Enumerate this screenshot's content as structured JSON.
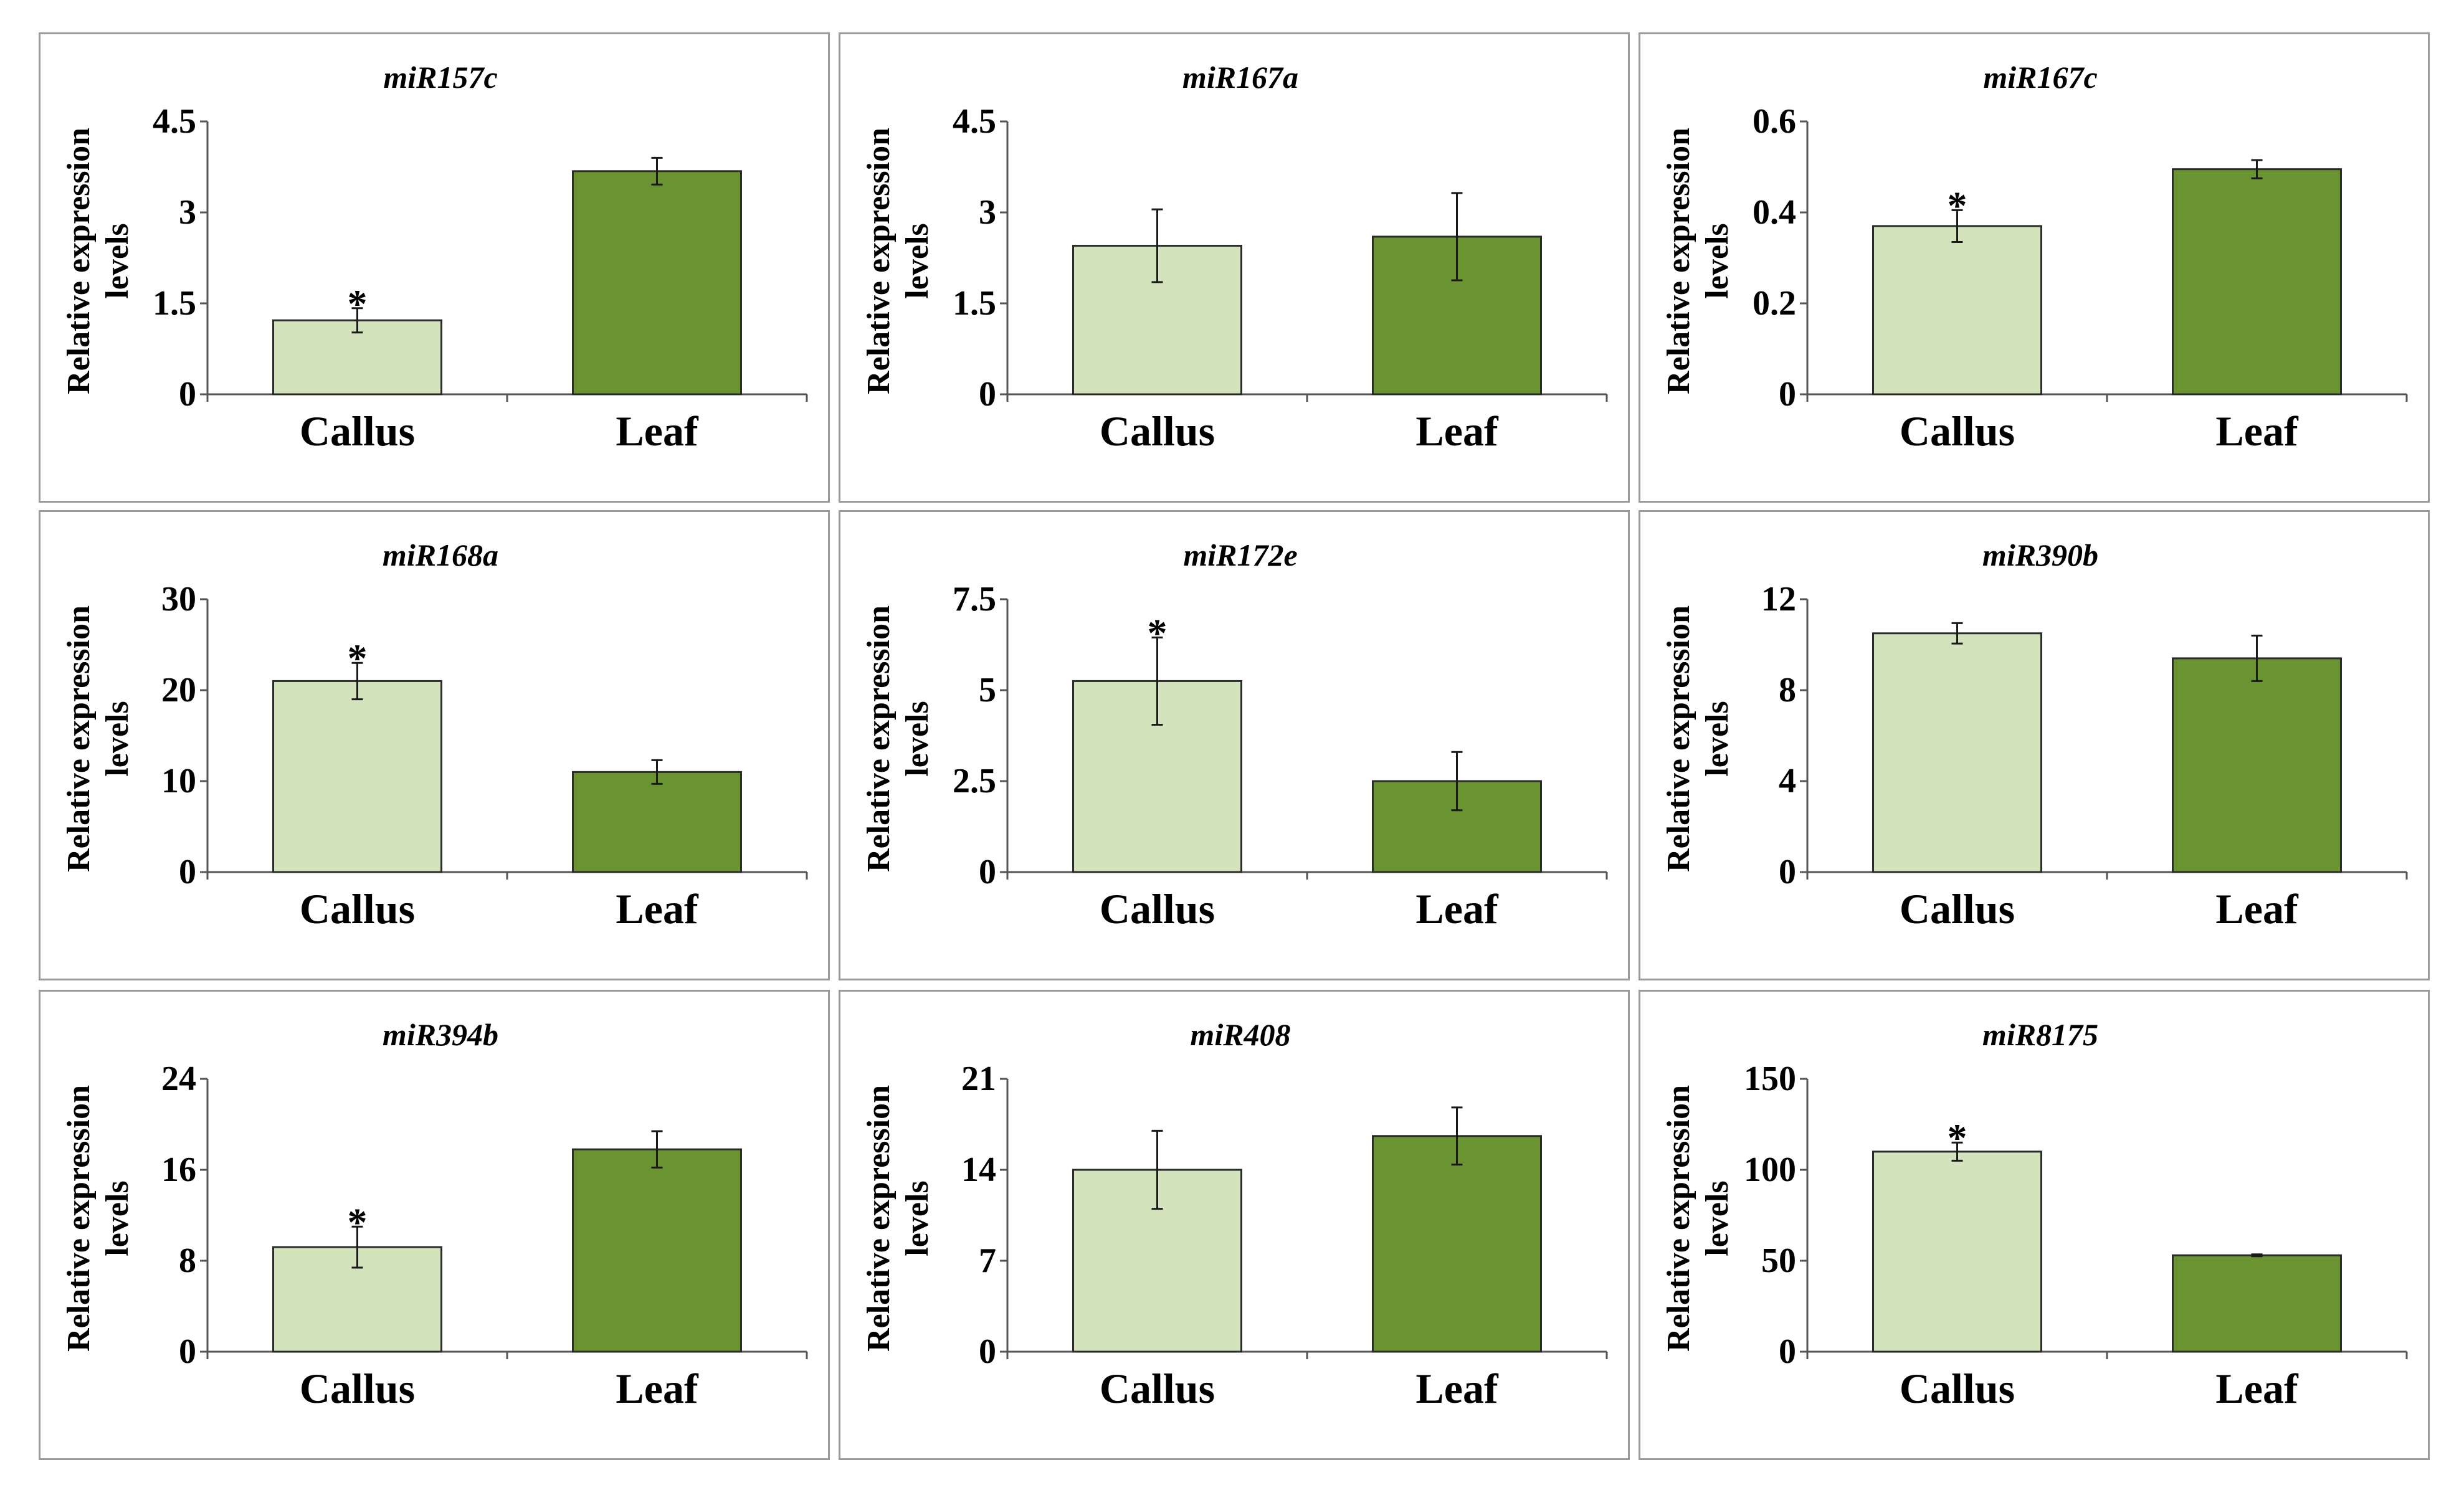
{
  "chart_data": [
    {
      "type": "bar",
      "title": "miR157c",
      "ylabel": "Relative expression levels",
      "ylabel_lines": [
        "Relative expression",
        "levels"
      ],
      "categories": [
        "Callus",
        "Leaf"
      ],
      "values": [
        1.22,
        3.68
      ],
      "errors": [
        0.2,
        0.22
      ],
      "significance": [
        "*",
        ""
      ],
      "yticks": [
        "0",
        "1.5",
        "3",
        "4.5"
      ],
      "ylim": [
        0,
        4.5
      ]
    },
    {
      "type": "bar",
      "title": "miR167a",
      "ylabel": "Relative expression levels",
      "ylabel_lines": [
        "Relative expression",
        "levels"
      ],
      "categories": [
        "Callus",
        "Leaf"
      ],
      "values": [
        2.45,
        2.6
      ],
      "errors": [
        0.6,
        0.72
      ],
      "significance": [
        "",
        ""
      ],
      "yticks": [
        "0",
        "1.5",
        "3",
        "4.5"
      ],
      "ylim": [
        0,
        4.5
      ]
    },
    {
      "type": "bar",
      "title": "miR167c",
      "ylabel": "Relative expression levels",
      "ylabel_lines": [
        "Relative expression",
        "levels"
      ],
      "categories": [
        "Callus",
        "Leaf"
      ],
      "values": [
        0.37,
        0.495
      ],
      "errors": [
        0.035,
        0.02
      ],
      "significance": [
        "*",
        ""
      ],
      "yticks": [
        "0",
        "0.2",
        "0.4",
        "0.6"
      ],
      "ylim": [
        0,
        0.6
      ]
    },
    {
      "type": "bar",
      "title": "miR168a",
      "ylabel": "Relative expression levels",
      "ylabel_lines": [
        "Relative expression",
        "levels"
      ],
      "categories": [
        "Callus",
        "Leaf"
      ],
      "values": [
        21,
        11
      ],
      "errors": [
        2,
        1.3
      ],
      "significance": [
        "*",
        ""
      ],
      "yticks": [
        "0",
        "10",
        "20",
        "30"
      ],
      "ylim": [
        0,
        30
      ]
    },
    {
      "type": "bar",
      "title": "miR172e",
      "ylabel": "Relative expression levels",
      "ylabel_lines": [
        "Relative expression",
        "levels"
      ],
      "categories": [
        "Callus",
        "Leaf"
      ],
      "values": [
        5.25,
        2.5
      ],
      "errors": [
        1.2,
        0.8
      ],
      "significance": [
        "*",
        ""
      ],
      "yticks": [
        "0",
        "2.5",
        "5",
        "7.5"
      ],
      "ylim": [
        0,
        7.5
      ]
    },
    {
      "type": "bar",
      "title": "miR390b",
      "ylabel": "Relative expression levels",
      "ylabel_lines": [
        "Relative expression",
        "levels"
      ],
      "categories": [
        "Callus",
        "Leaf"
      ],
      "values": [
        10.5,
        9.4
      ],
      "errors": [
        0.45,
        1
      ],
      "significance": [
        "",
        ""
      ],
      "yticks": [
        "0",
        "4",
        "8",
        "12"
      ],
      "ylim": [
        0,
        12
      ]
    },
    {
      "type": "bar",
      "title": "miR394b",
      "ylabel": "Relative expression levels",
      "ylabel_lines": [
        "Relative expression",
        "levels"
      ],
      "categories": [
        "Callus",
        "Leaf"
      ],
      "values": [
        9.2,
        17.8
      ],
      "errors": [
        1.8,
        1.6
      ],
      "significance": [
        "*",
        ""
      ],
      "yticks": [
        "0",
        "8",
        "16",
        "24"
      ],
      "ylim": [
        0,
        24
      ]
    },
    {
      "type": "bar",
      "title": "miR408",
      "ylabel": "Relative expression levels",
      "ylabel_lines": [
        "Relative expression",
        "levels"
      ],
      "categories": [
        "Callus",
        "Leaf"
      ],
      "values": [
        14,
        16.6
      ],
      "errors": [
        3,
        2.2
      ],
      "significance": [
        "",
        ""
      ],
      "yticks": [
        "0",
        "7",
        "14",
        "21"
      ],
      "ylim": [
        0,
        21
      ]
    },
    {
      "type": "bar",
      "title": "miR8175",
      "ylabel": "Relative expression levels",
      "ylabel_lines": [
        "Relative expression",
        "levels"
      ],
      "categories": [
        "Callus",
        "Leaf"
      ],
      "values": [
        110,
        53
      ],
      "errors": [
        5,
        0.5
      ],
      "significance": [
        "*",
        ""
      ],
      "yticks": [
        "0",
        "50",
        "100",
        "150"
      ],
      "ylim": [
        0,
        150
      ]
    }
  ],
  "colors": {
    "callus": "#d3e3bc",
    "leaf": "#6a9432",
    "panel_border": "#9a9a9a"
  }
}
